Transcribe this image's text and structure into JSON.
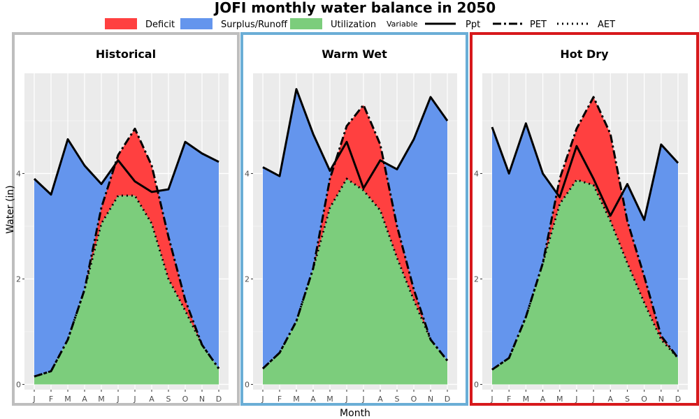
{
  "chart_data": {
    "type": "area",
    "title": "JOFI monthly water balance in 2050",
    "xlabel": "Month",
    "ylabel": "Water (in)",
    "ylim": [
      -0.1,
      5.9
    ],
    "y_ticks": [
      0,
      2,
      4
    ],
    "categories": [
      "J",
      "F",
      "M",
      "A",
      "M",
      "J",
      "J",
      "A",
      "S",
      "O",
      "N",
      "D"
    ],
    "grid": true,
    "legend_placement": "top",
    "legend": {
      "fill_items": [
        {
          "label": "Deficit",
          "color": "#ff4040"
        },
        {
          "label": "Surplus/Runoff",
          "color": "#6495ed"
        },
        {
          "label": "Utilization",
          "color": "#7ccd7c"
        }
      ],
      "variable_title": "Variable",
      "line_items": [
        {
          "label": "Ppt",
          "style": "solid"
        },
        {
          "label": "PET",
          "style": "dashdot"
        },
        {
          "label": "AET",
          "style": "dotted"
        }
      ]
    },
    "panels": [
      {
        "title": "Historical",
        "border_color": "#bebebe",
        "series": [
          {
            "name": "Ppt",
            "values": [
              3.9,
              3.6,
              4.65,
              4.15,
              3.8,
              4.25,
              3.85,
              3.65,
              3.7,
              4.6,
              4.38,
              4.22
            ]
          },
          {
            "name": "PET",
            "values": [
              0.15,
              0.25,
              0.85,
              1.8,
              3.35,
              4.35,
              4.85,
              4.15,
              2.8,
              1.6,
              0.75,
              0.3
            ]
          },
          {
            "name": "AET",
            "values": [
              0.15,
              0.25,
              0.85,
              1.8,
              3.05,
              3.58,
              3.58,
              3.05,
              2.0,
              1.4,
              0.75,
              0.3
            ]
          }
        ]
      },
      {
        "title": "Warm Wet",
        "border_color": "#6baed6",
        "series": [
          {
            "name": "Ppt",
            "values": [
              4.12,
              3.95,
              5.6,
              4.75,
              4.05,
              4.6,
              3.72,
              4.25,
              4.08,
              4.65,
              5.45,
              5.0
            ]
          },
          {
            "name": "PET",
            "values": [
              0.3,
              0.6,
              1.2,
              2.2,
              3.9,
              4.9,
              5.3,
              4.55,
              3.0,
              1.8,
              0.85,
              0.45
            ]
          },
          {
            "name": "AET",
            "values": [
              0.3,
              0.6,
              1.2,
              2.2,
              3.35,
              3.9,
              3.68,
              3.3,
              2.4,
              1.6,
              0.85,
              0.45
            ]
          }
        ]
      },
      {
        "title": "Hot Dry",
        "border_color": "#d7191c",
        "series": [
          {
            "name": "Ppt",
            "values": [
              4.88,
              4.0,
              4.95,
              4.0,
              3.55,
              4.52,
              3.9,
              3.2,
              3.8,
              3.12,
              4.55,
              4.2
            ]
          },
          {
            "name": "PET",
            "values": [
              0.28,
              0.5,
              1.28,
              2.3,
              3.9,
              4.85,
              5.45,
              4.75,
              3.1,
              2.05,
              0.92,
              0.5
            ]
          },
          {
            "name": "AET",
            "values": [
              0.28,
              0.5,
              1.28,
              2.3,
              3.42,
              3.88,
              3.78,
              3.1,
              2.3,
              1.55,
              0.85,
              0.5
            ]
          }
        ]
      }
    ]
  }
}
